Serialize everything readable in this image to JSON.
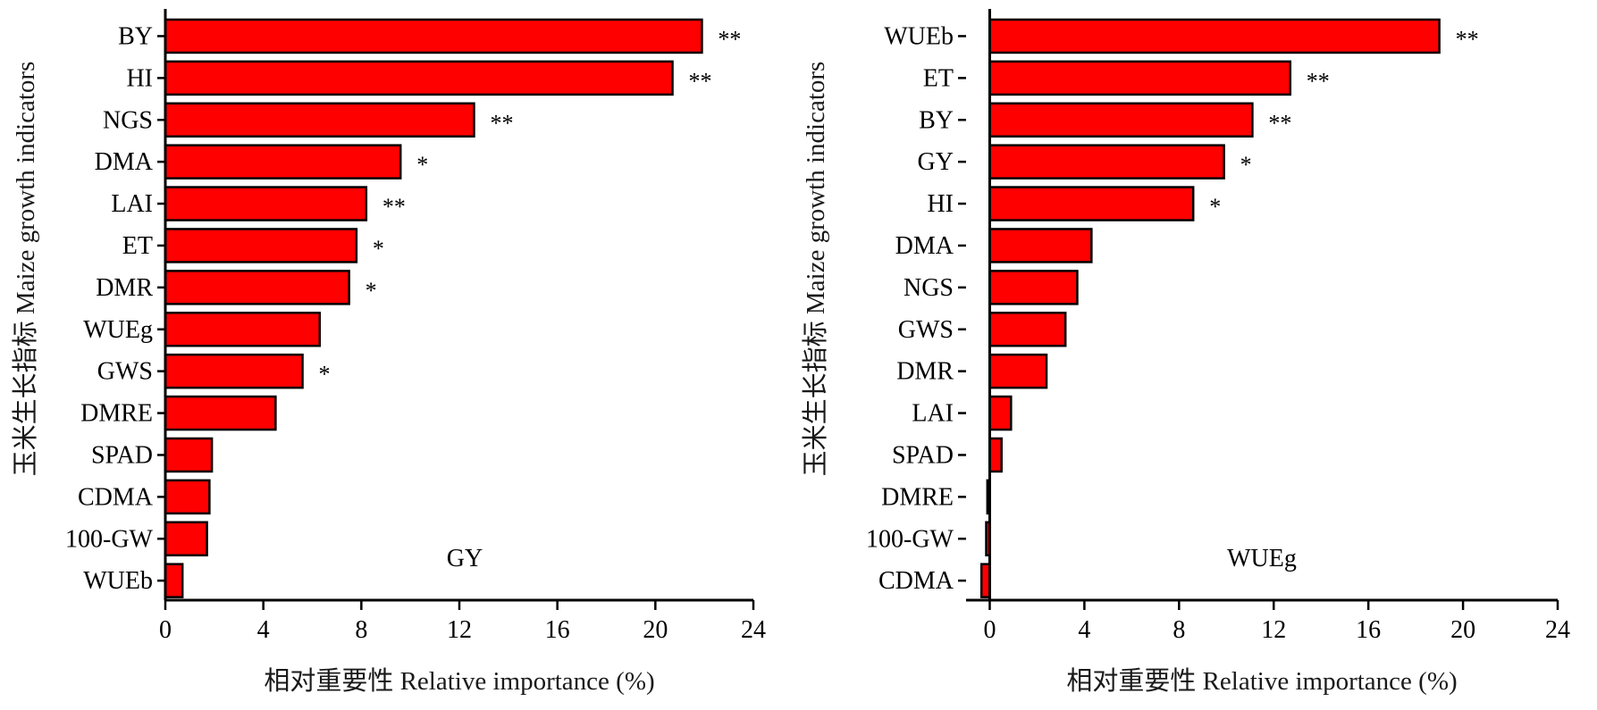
{
  "chart_data": [
    {
      "type": "bar",
      "orientation": "horizontal",
      "panel_label": "GY",
      "xlabel": "相对重要性 Relative importance (%)",
      "ylabel": "玉米生长指标 Maize growth indicators",
      "xlim": [
        0,
        24
      ],
      "xticks": [
        "0",
        "4",
        "8",
        "12",
        "16",
        "20",
        "24"
      ],
      "bar_color": "#ff0000",
      "categories": [
        "BY",
        "HI",
        "NGS",
        "DMA",
        "LAI",
        "ET",
        "DMR",
        "WUEg",
        "GWS",
        "DMRE",
        "SPAD",
        "CDMA",
        "100-GW",
        "WUEb"
      ],
      "values": [
        21.9,
        20.7,
        12.6,
        9.6,
        8.2,
        7.8,
        7.5,
        6.3,
        5.6,
        4.5,
        1.9,
        1.8,
        1.7,
        0.7
      ],
      "significance": [
        "**",
        "**",
        "**",
        "*",
        "**",
        "*",
        "*",
        "",
        "*",
        "",
        "",
        "",
        "",
        ""
      ]
    },
    {
      "type": "bar",
      "orientation": "horizontal",
      "panel_label": "WUEg",
      "xlabel": "相对重要性 Relative importance (%)",
      "ylabel": "玉米生长指标 Maize growth indicators",
      "xlim": [
        -1,
        24
      ],
      "xticks": [
        "0",
        "4",
        "8",
        "12",
        "16",
        "20",
        "24"
      ],
      "bar_color": "#ff0000",
      "categories": [
        "WUEb",
        "ET",
        "BY",
        "GY",
        "HI",
        "DMA",
        "NGS",
        "GWS",
        "DMR",
        "LAI",
        "SPAD",
        "DMRE",
        "100-GW",
        "CDMA"
      ],
      "values": [
        19.0,
        12.7,
        11.1,
        9.9,
        8.6,
        4.3,
        3.7,
        3.2,
        2.4,
        0.9,
        0.5,
        -0.1,
        -0.15,
        -0.35
      ],
      "significance": [
        "**",
        "**",
        "**",
        "*",
        "*",
        "",
        "",
        "",
        "",
        "",
        "",
        "",
        "",
        ""
      ]
    }
  ]
}
